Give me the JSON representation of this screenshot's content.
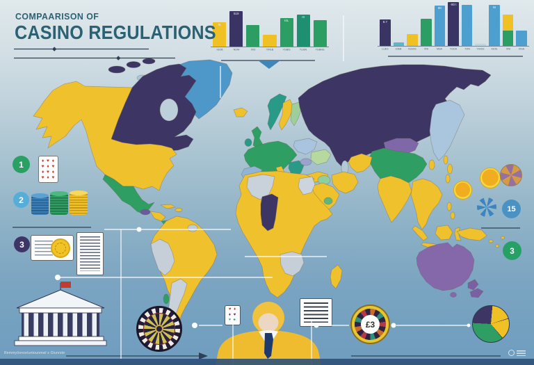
{
  "title": {
    "kicker": "COMPAARISON OF",
    "main": "CASINO REGULATIONS"
  },
  "markers": {
    "m1": "1",
    "m2": "2",
    "m3": "3",
    "m15": "15",
    "m3b": "3"
  },
  "playing_card_rows": [
    "♦ ♥ ♦",
    "♥ ♦ ♥",
    "♦ ♥ ♦",
    "♥ ♦ ♥"
  ],
  "mini_card_rows": [
    "♥ ♦",
    "♦ ♥",
    "♥ ♣"
  ],
  "roulette_label": "£3",
  "bottom_caption": "Remmyöonoetuntounmwl s Glunrote",
  "palette": {
    "yellow": "#f0c125",
    "purple": "#3a3464",
    "green": "#2d9e63",
    "teal": "#1f8f72",
    "blue": "#4d9fd0",
    "tealight": "#5fb6c9",
    "pale": "#b9d6e2",
    "map_yellow": "#efc12c",
    "map_purple": "#3d3665",
    "map_green": "#2f9e63",
    "map_blue": "#4e97c9",
    "map_violet": "#8468aa",
    "map_gray": "#c6cfd8",
    "accent_dark": "#2e4055",
    "title_color": "#2a6173"
  },
  "chart_data": [
    {
      "type": "bar",
      "title": "",
      "categories": [
        "IGOB",
        "NOW",
        "IXIS",
        "TIFEB",
        "YGBIS",
        "TUGN",
        "YGBNG"
      ],
      "values": [
        68,
        98,
        60,
        32,
        78,
        88,
        74
      ],
      "colors": [
        "yellow",
        "purple",
        "green",
        "yellow",
        "green",
        "teal",
        "green"
      ],
      "bar_labels": [
        "N",
        "519",
        "",
        "",
        "I4L",
        "AI",
        ""
      ],
      "ylim": [
        0,
        100
      ],
      "grid": false,
      "legend": "none"
    },
    {
      "type": "bar",
      "title": "",
      "categories": [
        "LUES",
        "10EB",
        "IGSOS",
        "XNI",
        "MSA",
        "YGDA",
        "TJIN",
        "YGICE",
        "IGOE",
        "XNI",
        "IXGA"
      ],
      "values": [
        59,
        8,
        27,
        61,
        91,
        98,
        92,
        5,
        92,
        70,
        34
      ],
      "colors": [
        "purple",
        "tealight",
        "yellow",
        "green",
        "blue",
        "purple",
        "blue",
        "pale",
        "blue",
        "stack",
        "blue"
      ],
      "bar_labels": [
        "8.7",
        "",
        "",
        "",
        "90",
        "-80 t",
        "",
        "",
        "M",
        "",
        ""
      ],
      "stacks": {
        "9": [
          {
            "color": "green",
            "value": 35
          },
          {
            "color": "yellow",
            "value": 35
          }
        ]
      },
      "ylim": [
        0,
        100
      ],
      "grid": false,
      "legend": "none"
    },
    {
      "type": "pie",
      "slices": [
        {
          "value": 25,
          "color": "#3d3665"
        },
        {
          "value": 19,
          "color": "#f0c125"
        },
        {
          "value": 19,
          "color": "#f0c125"
        },
        {
          "value": 37,
          "color": "#2f9e63"
        }
      ],
      "start_angle_deg": -85,
      "separator_color": "#2e3b4e"
    }
  ]
}
